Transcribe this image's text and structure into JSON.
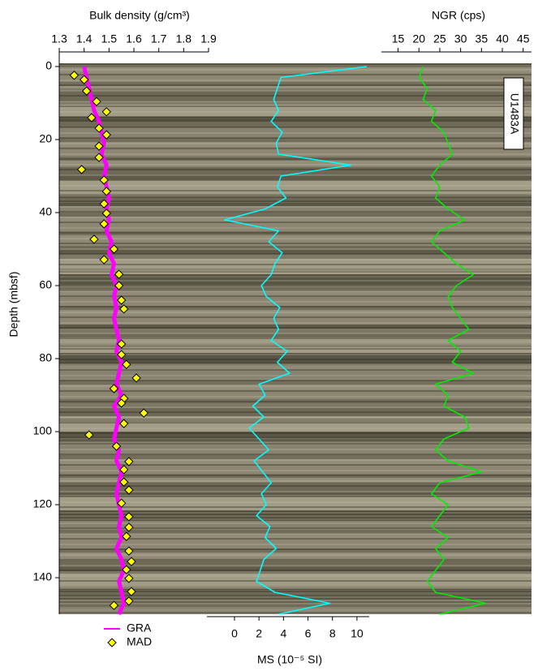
{
  "chart_data": [
    {
      "type": "line",
      "title": "Bulk density (g/cm³)",
      "ylabel": "Depth (mbsf)",
      "xlim": [
        1.3,
        1.9
      ],
      "xticks": [
        1.3,
        1.4,
        1.5,
        1.6,
        1.7,
        1.8,
        1.9
      ],
      "ylim": [
        -1,
        150
      ],
      "yticks": [
        0,
        20,
        40,
        60,
        80,
        100,
        120,
        140
      ],
      "series": [
        {
          "name": "GRA",
          "type": "line",
          "color": "#ff00ff",
          "y": [
            0,
            3,
            6,
            9,
            12,
            15,
            18,
            21,
            24,
            27,
            30,
            33,
            36,
            39,
            42,
            45,
            48,
            51,
            54,
            57,
            60,
            63,
            66,
            69,
            72,
            75,
            78,
            81,
            84,
            87,
            90,
            93,
            96,
            99,
            102,
            105,
            108,
            111,
            114,
            117,
            120,
            123,
            126,
            129,
            132,
            135,
            138,
            141,
            144,
            147,
            150
          ],
          "values": [
            1.4,
            1.41,
            1.42,
            1.43,
            1.44,
            1.46,
            1.47,
            1.48,
            1.47,
            1.49,
            1.48,
            1.49,
            1.5,
            1.49,
            1.5,
            1.49,
            1.51,
            1.5,
            1.52,
            1.51,
            1.53,
            1.52,
            1.53,
            1.52,
            1.53,
            1.54,
            1.53,
            1.55,
            1.54,
            1.53,
            1.55,
            1.52,
            1.54,
            1.53,
            1.52,
            1.54,
            1.53,
            1.55,
            1.54,
            1.53,
            1.54,
            1.55,
            1.54,
            1.55,
            1.53,
            1.55,
            1.56,
            1.54,
            1.55,
            1.56,
            1.54
          ]
        },
        {
          "name": "MAD",
          "type": "scatter",
          "color": "#ffff00",
          "y": [
            2.4,
            3.6,
            6.7,
            9.6,
            12.4,
            14,
            16.9,
            18.7,
            21.8,
            24.9,
            28.2,
            31.1,
            34.2,
            37.6,
            40.2,
            43.1,
            47.3,
            50,
            52.9,
            56.9,
            60,
            64,
            66.4,
            76,
            78.9,
            81.6,
            85.3,
            88.2,
            90.9,
            92.2,
            94.9,
            97.8,
            100.9,
            104,
            108.2,
            110.4,
            113.8,
            116,
            119.6,
            123.3,
            126.2,
            128.7,
            132.7,
            135.6,
            137.8,
            140.2,
            143.8,
            146.4,
            147.6
          ],
          "values": [
            1.36,
            1.4,
            1.41,
            1.45,
            1.49,
            1.43,
            1.46,
            1.49,
            1.46,
            1.46,
            1.39,
            1.48,
            1.49,
            1.48,
            1.49,
            1.48,
            1.44,
            1.52,
            1.48,
            1.54,
            1.54,
            1.55,
            1.56,
            1.55,
            1.55,
            1.57,
            1.61,
            1.52,
            1.56,
            1.55,
            1.64,
            1.56,
            1.42,
            1.53,
            1.58,
            1.56,
            1.56,
            1.58,
            1.55,
            1.58,
            1.58,
            1.57,
            1.58,
            1.59,
            1.57,
            1.58,
            1.59,
            1.58,
            1.52
          ]
        }
      ]
    },
    {
      "type": "line",
      "xlabel": "MS (10⁻⁵ SI)",
      "xlim": [
        -2.25,
        11
      ],
      "xticks": [
        0,
        2,
        4,
        6,
        8,
        10
      ],
      "ylim": [
        -1,
        150
      ],
      "series": [
        {
          "color": "#00ffff",
          "y": [
            0,
            3,
            6,
            9,
            12,
            15,
            18,
            21,
            24,
            27,
            30,
            33,
            36,
            39,
            42,
            45,
            48,
            51,
            54,
            57,
            60,
            63,
            66,
            69,
            72,
            75,
            78,
            81,
            84,
            87,
            90,
            93,
            96,
            99,
            102,
            105,
            108,
            111,
            114,
            117,
            120,
            123,
            126,
            129,
            132,
            135,
            138,
            141,
            144,
            147,
            150
          ],
          "values": [
            10.8,
            3.8,
            3.5,
            3.2,
            3.6,
            3.0,
            3.9,
            3.4,
            3.6,
            9.5,
            3.8,
            3.5,
            4.2,
            2.5,
            -0.8,
            3.6,
            2.8,
            3.9,
            3.3,
            3.0,
            2.2,
            2.6,
            3.7,
            3.2,
            3.6,
            3.0,
            4.3,
            3.5,
            4.5,
            2.0,
            2.5,
            1.5,
            2.4,
            1.2,
            2.0,
            2.8,
            1.6,
            2.3,
            3.0,
            2.2,
            2.6,
            1.8,
            2.9,
            2.5,
            3.4,
            2.4,
            2.1,
            1.8,
            3.3,
            7.8,
            3.6
          ]
        }
      ]
    },
    {
      "type": "line",
      "title": "NGR (cps)",
      "annotation": "U1483A",
      "xlim": [
        11,
        47
      ],
      "xticks": [
        15,
        20,
        25,
        30,
        35,
        40,
        45
      ],
      "ylim": [
        -1,
        150
      ],
      "series": [
        {
          "color": "#00ee00",
          "y": [
            0,
            3,
            6,
            9,
            12,
            15,
            18,
            21,
            24,
            27,
            30,
            33,
            36,
            39,
            42,
            45,
            48,
            51,
            54,
            57,
            60,
            63,
            66,
            69,
            72,
            75,
            78,
            81,
            84,
            87,
            90,
            93,
            96,
            99,
            102,
            105,
            108,
            111,
            114,
            117,
            120,
            123,
            126,
            129,
            132,
            135,
            138,
            141,
            144,
            147,
            150
          ],
          "values": [
            21,
            20,
            22,
            21,
            24,
            23,
            26,
            27,
            28,
            25,
            23,
            25,
            24,
            27,
            31,
            25,
            23,
            26,
            29,
            33,
            29,
            27,
            28,
            30,
            32,
            27,
            30,
            28,
            33,
            24,
            27,
            26,
            31,
            32,
            26,
            24,
            27,
            35,
            25,
            23,
            27,
            25,
            23,
            27,
            24,
            26,
            24,
            22,
            24,
            36,
            25
          ]
        }
      ]
    }
  ]
}
